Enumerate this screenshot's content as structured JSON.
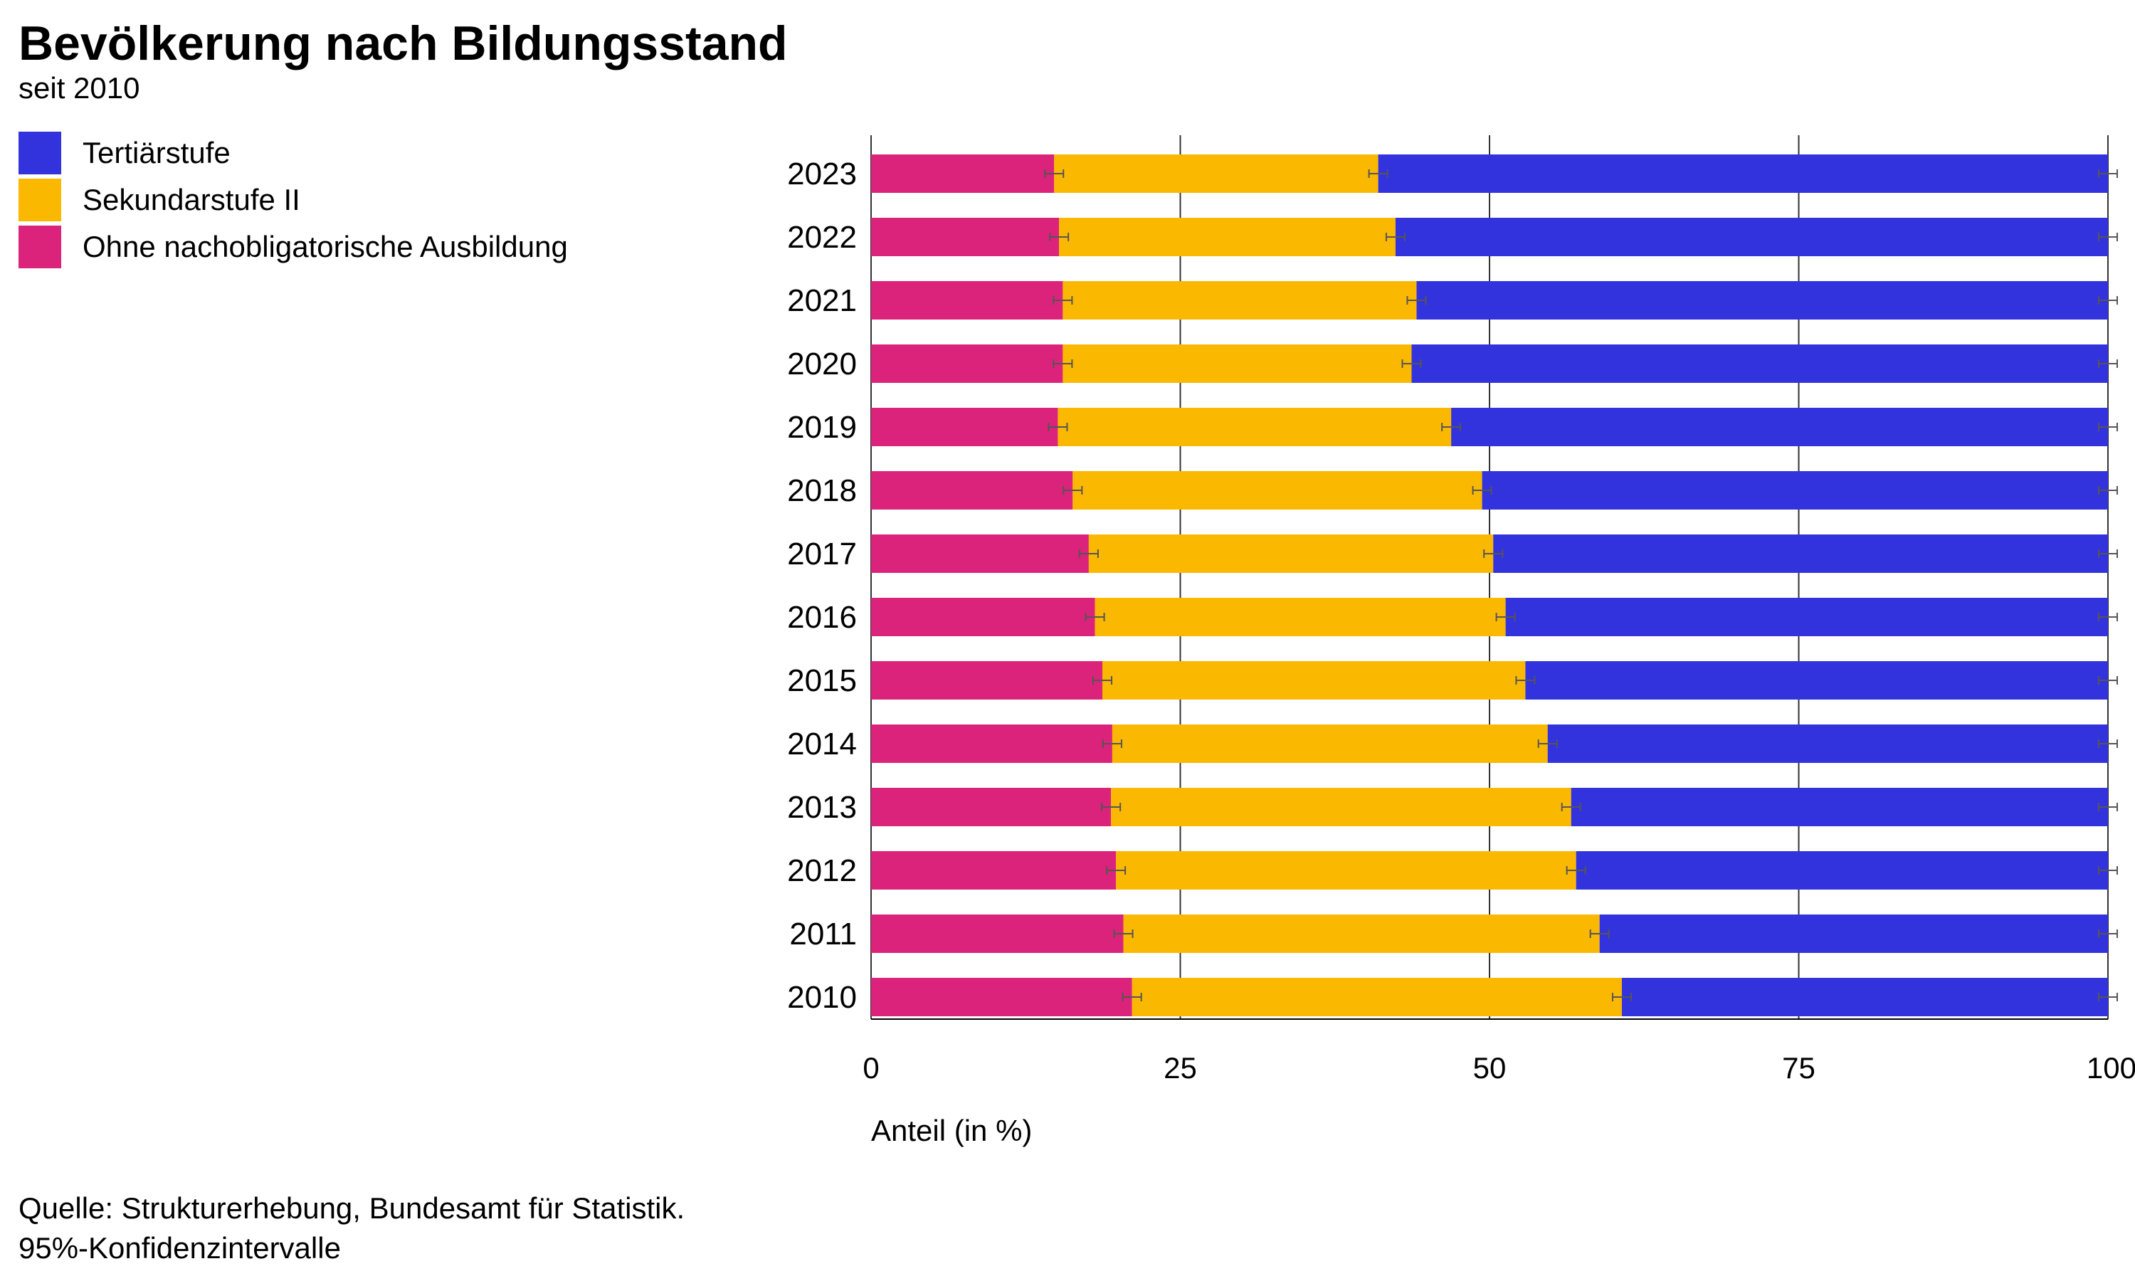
{
  "title": "Bevölkerung nach Bildungsstand",
  "subtitle": "seit 2010",
  "source_line1": "Quelle: Strukturerhebung, Bundesamt für Statistik.",
  "source_line2": "95%-Konfidenzintervalle",
  "legend": [
    {
      "label": "Tertiärstufe",
      "color": "#3333dd"
    },
    {
      "label": "Sekundarstufe II",
      "color": "#fbb800"
    },
    {
      "label": "Ohne nachobligatorische Ausbildung",
      "color": "#db237b"
    }
  ],
  "chart_data": {
    "type": "bar",
    "orientation": "horizontal",
    "stacked": true,
    "categories": [
      "2023",
      "2022",
      "2021",
      "2020",
      "2019",
      "2018",
      "2017",
      "2016",
      "2015",
      "2014",
      "2013",
      "2012",
      "2011",
      "2010"
    ],
    "series": [
      {
        "name": "Ohne nachobligatorische Ausbildung",
        "color": "#db237b",
        "values": [
          14.8,
          15.2,
          15.5,
          15.5,
          15.1,
          16.3,
          17.6,
          18.1,
          18.7,
          19.5,
          19.4,
          19.8,
          20.4,
          21.1
        ]
      },
      {
        "name": "Sekundarstufe II",
        "color": "#fbb800",
        "values": [
          26.2,
          27.2,
          28.6,
          28.2,
          31.8,
          33.1,
          32.7,
          33.2,
          34.2,
          35.2,
          37.2,
          37.2,
          38.5,
          39.6
        ]
      },
      {
        "name": "Tertiärstufe",
        "color": "#3333dd",
        "values": [
          59.0,
          57.6,
          55.9,
          56.3,
          53.1,
          50.6,
          49.7,
          48.7,
          47.1,
          45.3,
          43.4,
          43.0,
          41.1,
          39.3
        ]
      }
    ],
    "error_bars": "95%-Konfidenzintervalle",
    "xlabel": "Anteil (in %)",
    "xlim": [
      0,
      100
    ],
    "xticks": [
      0,
      25,
      50,
      75,
      100
    ],
    "grid": true,
    "legend_position": "top-left"
  }
}
